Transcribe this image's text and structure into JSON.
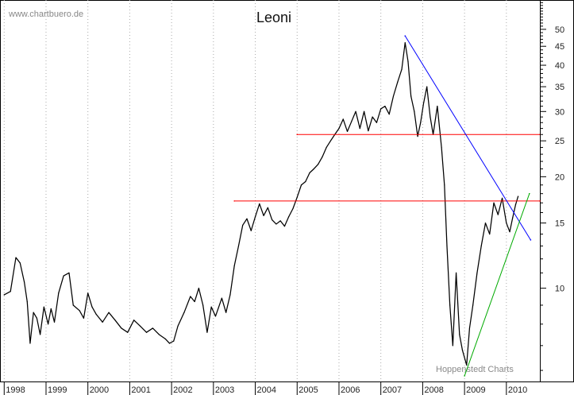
{
  "page": {
    "watermark": "www.chartbuero.de",
    "source": "Hoppenstedt Charts"
  },
  "chart_data": {
    "type": "line",
    "title": "Leoni",
    "xlabel": "",
    "ylabel": "",
    "x_ticks": [
      "1998",
      "1999",
      "2000",
      "2001",
      "2002",
      "2003",
      "2004",
      "2005",
      "2006",
      "2007",
      "2008",
      "2009",
      "2010"
    ],
    "y_ticks": [
      10,
      15,
      20,
      25,
      30,
      35,
      40,
      45,
      50
    ],
    "y_scale": "log",
    "ylim": [
      5.6,
      60
    ],
    "xlim": [
      1997.9,
      2010.8
    ],
    "grid": "vertical dotted year lines",
    "series": [
      {
        "color": "#000000",
        "points": [
          [
            1998.0,
            9.6
          ],
          [
            1998.15,
            9.8
          ],
          [
            1998.28,
            12.1
          ],
          [
            1998.38,
            11.7
          ],
          [
            1998.48,
            10.4
          ],
          [
            1998.55,
            9.2
          ],
          [
            1998.62,
            7.1
          ],
          [
            1998.7,
            8.6
          ],
          [
            1998.78,
            8.3
          ],
          [
            1998.86,
            7.5
          ],
          [
            1998.95,
            8.9
          ],
          [
            1999.05,
            8.0
          ],
          [
            1999.12,
            8.8
          ],
          [
            1999.2,
            8.1
          ],
          [
            1999.3,
            9.7
          ],
          [
            1999.42,
            10.8
          ],
          [
            1999.55,
            11.0
          ],
          [
            1999.65,
            9.0
          ],
          [
            1999.8,
            8.7
          ],
          [
            1999.9,
            8.3
          ],
          [
            2000.0,
            9.7
          ],
          [
            2000.1,
            8.9
          ],
          [
            2000.2,
            8.5
          ],
          [
            2000.35,
            8.1
          ],
          [
            2000.5,
            8.6
          ],
          [
            2000.65,
            8.2
          ],
          [
            2000.8,
            7.8
          ],
          [
            2000.95,
            7.6
          ],
          [
            2001.1,
            8.2
          ],
          [
            2001.25,
            7.9
          ],
          [
            2001.4,
            7.6
          ],
          [
            2001.55,
            7.8
          ],
          [
            2001.7,
            7.5
          ],
          [
            2001.85,
            7.3
          ],
          [
            2001.95,
            7.1
          ],
          [
            2002.05,
            7.2
          ],
          [
            2002.15,
            7.9
          ],
          [
            2002.3,
            8.6
          ],
          [
            2002.45,
            9.5
          ],
          [
            2002.55,
            9.2
          ],
          [
            2002.65,
            10.0
          ],
          [
            2002.75,
            9.0
          ],
          [
            2002.85,
            7.6
          ],
          [
            2002.95,
            8.9
          ],
          [
            2003.05,
            8.4
          ],
          [
            2003.2,
            9.4
          ],
          [
            2003.3,
            8.6
          ],
          [
            2003.4,
            9.6
          ],
          [
            2003.5,
            11.5
          ],
          [
            2003.6,
            13.0
          ],
          [
            2003.7,
            14.8
          ],
          [
            2003.8,
            15.4
          ],
          [
            2003.9,
            14.3
          ],
          [
            2004.0,
            15.6
          ],
          [
            2004.1,
            16.9
          ],
          [
            2004.2,
            15.7
          ],
          [
            2004.3,
            16.5
          ],
          [
            2004.4,
            15.3
          ],
          [
            2004.5,
            14.9
          ],
          [
            2004.6,
            15.2
          ],
          [
            2004.7,
            14.7
          ],
          [
            2004.8,
            15.6
          ],
          [
            2004.9,
            16.4
          ],
          [
            2005.0,
            17.6
          ],
          [
            2005.1,
            19.0
          ],
          [
            2005.2,
            19.4
          ],
          [
            2005.3,
            20.5
          ],
          [
            2005.4,
            21.0
          ],
          [
            2005.5,
            21.6
          ],
          [
            2005.6,
            22.6
          ],
          [
            2005.7,
            24.0
          ],
          [
            2005.8,
            25.0
          ],
          [
            2005.9,
            26.0
          ],
          [
            2006.0,
            27.0
          ],
          [
            2006.1,
            28.6
          ],
          [
            2006.2,
            26.5
          ],
          [
            2006.3,
            28.2
          ],
          [
            2006.4,
            30.0
          ],
          [
            2006.5,
            27.0
          ],
          [
            2006.6,
            30.0
          ],
          [
            2006.7,
            26.6
          ],
          [
            2006.8,
            29.0
          ],
          [
            2006.9,
            28.0
          ],
          [
            2007.0,
            30.5
          ],
          [
            2007.1,
            31.0
          ],
          [
            2007.2,
            29.5
          ],
          [
            2007.3,
            33.0
          ],
          [
            2007.4,
            36.0
          ],
          [
            2007.5,
            39.0
          ],
          [
            2007.58,
            46.0
          ],
          [
            2007.65,
            41.0
          ],
          [
            2007.72,
            33.0
          ],
          [
            2007.8,
            30.0
          ],
          [
            2007.88,
            25.7
          ],
          [
            2007.95,
            28.0
          ],
          [
            2008.02,
            31.5
          ],
          [
            2008.1,
            35.0
          ],
          [
            2008.18,
            29.0
          ],
          [
            2008.25,
            26.0
          ],
          [
            2008.35,
            31.0
          ],
          [
            2008.45,
            24.0
          ],
          [
            2008.52,
            19.0
          ],
          [
            2008.58,
            13.0
          ],
          [
            2008.65,
            9.0
          ],
          [
            2008.72,
            7.0
          ],
          [
            2008.8,
            11.0
          ],
          [
            2008.88,
            7.5
          ],
          [
            2008.95,
            6.8
          ],
          [
            2009.05,
            6.2
          ],
          [
            2009.12,
            7.8
          ],
          [
            2009.2,
            9.0
          ],
          [
            2009.3,
            11.0
          ],
          [
            2009.4,
            13.0
          ],
          [
            2009.5,
            15.0
          ],
          [
            2009.6,
            14.0
          ],
          [
            2009.7,
            17.0
          ],
          [
            2009.8,
            15.8
          ],
          [
            2009.9,
            17.5
          ],
          [
            2010.0,
            15.0
          ],
          [
            2010.08,
            14.2
          ],
          [
            2010.15,
            15.5
          ],
          [
            2010.22,
            16.8
          ],
          [
            2010.28,
            17.7
          ]
        ]
      },
      {
        "color": "#ff0000",
        "points": [
          [
            2005.0,
            26.0
          ],
          [
            2010.8,
            26.0
          ]
        ]
      },
      {
        "color": "#ff0000",
        "points": [
          [
            2003.5,
            17.2
          ],
          [
            2010.8,
            17.2
          ]
        ]
      },
      {
        "color": "#0000ff",
        "points": [
          [
            2007.58,
            48.0
          ],
          [
            2010.58,
            13.5
          ]
        ]
      },
      {
        "color": "#00aa00",
        "points": [
          [
            2009.0,
            5.8
          ],
          [
            2010.55,
            18.0
          ]
        ]
      }
    ]
  }
}
